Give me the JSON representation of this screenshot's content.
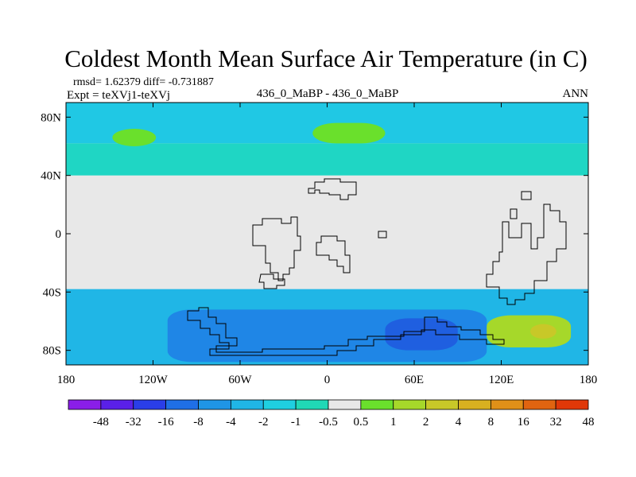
{
  "chart_data": {
    "type": "heatmap",
    "title": "Coldest Month Mean Surface Air Temperature (in C)",
    "stats_line": "rmsd= 1.62379 diff= -0.731887",
    "expt_line": "Expt = teXVj1-teXVj",
    "center_label": "436_0_MaBP - 436_0_MaBP",
    "right_label": "ANN",
    "x_axis": {
      "range": [
        -180,
        180
      ],
      "ticks": [
        -180,
        -120,
        -60,
        0,
        60,
        120,
        180
      ],
      "tick_labels": [
        "180",
        "120W",
        "60W",
        "0",
        "60E",
        "120E",
        "180"
      ]
    },
    "y_axis": {
      "range": [
        -90,
        90
      ],
      "ticks": [
        80,
        40,
        0,
        -40,
        -80
      ],
      "tick_labels": [
        "80N",
        "40N",
        "0",
        "40S",
        "80S"
      ]
    },
    "colorbar": {
      "labels": [
        "-48",
        "-32",
        "-16",
        "-8",
        "-4",
        "-2",
        "-1",
        "-0.5",
        "0.5",
        "1",
        "2",
        "4",
        "8",
        "16",
        "32",
        "48"
      ],
      "colors": [
        "#8a1ee8",
        "#5a20e8",
        "#2a3ee8",
        "#1f6fe6",
        "#1f95e6",
        "#20b6e6",
        "#1fcfe0",
        "#20d8b6",
        "#e8e8e8",
        "#6ae02c",
        "#a6d82a",
        "#c8c828",
        "#d8b020",
        "#e09018",
        "#e06410",
        "#e03808"
      ]
    },
    "background_color": "#e8e8e8",
    "regions": [
      {
        "name": "north-polar-band",
        "level": "-1",
        "color": "#20c8e4",
        "lon": [
          -180,
          180
        ],
        "lat": [
          62,
          90
        ]
      },
      {
        "name": "northern-midlatitude-band",
        "level": "-0.5",
        "color": "#1fd6c4",
        "lon": [
          -180,
          180
        ],
        "lat": [
          40,
          62
        ]
      },
      {
        "name": "northern-cold-patch-pacific",
        "level": "1",
        "color": "#6ae02c",
        "lon": [
          -148,
          -118
        ],
        "lat": [
          60,
          72
        ]
      },
      {
        "name": "northern-cold-patch-atlantic",
        "level": "1",
        "color": "#6ae02c",
        "lon": [
          -10,
          40
        ],
        "lat": [
          62,
          76
        ]
      },
      {
        "name": "southern-ocean-band",
        "level": "-2",
        "color": "#20b6e6",
        "lon": [
          -180,
          180
        ],
        "lat": [
          -90,
          -38
        ]
      },
      {
        "name": "southern-deep-negative",
        "level": "-4",
        "color": "#1f86e6",
        "lon": [
          -110,
          110
        ],
        "lat": [
          -88,
          -52
        ]
      },
      {
        "name": "southern-core-negative",
        "level": "-8",
        "color": "#1f5fe0",
        "lon": [
          40,
          90
        ],
        "lat": [
          -80,
          -58
        ]
      },
      {
        "name": "southern-warm-patch",
        "level": "2",
        "color": "#a6d82a",
        "lon": [
          110,
          168
        ],
        "lat": [
          -78,
          -56
        ]
      },
      {
        "name": "southern-warm-core",
        "level": "4",
        "color": "#c8c828",
        "lon": [
          140,
          158
        ],
        "lat": [
          -72,
          -62
        ]
      }
    ]
  }
}
